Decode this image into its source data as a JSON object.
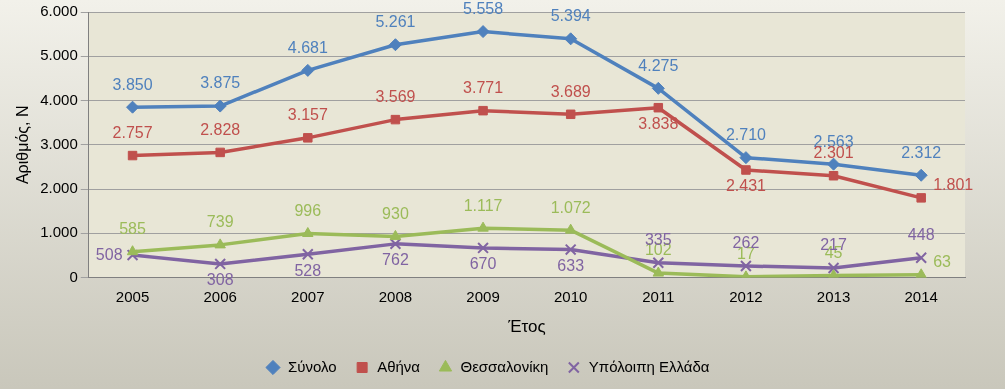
{
  "chart_data": {
    "type": "line",
    "xlabel": "Έτος",
    "ylabel": "Αριθμός, Ν",
    "categories": [
      "2005",
      "2006",
      "2007",
      "2008",
      "2009",
      "2010",
      "2011",
      "2012",
      "2013",
      "2014"
    ],
    "ylim": [
      0,
      6000
    ],
    "yticks": [
      {
        "value": 0,
        "label": "0"
      },
      {
        "value": 1000,
        "label": "1.000"
      },
      {
        "value": 2000,
        "label": "2.000"
      },
      {
        "value": 3000,
        "label": "3.000"
      },
      {
        "value": 4000,
        "label": "4.000"
      },
      {
        "value": 5000,
        "label": "5.000"
      },
      {
        "value": 6000,
        "label": "6.000"
      }
    ],
    "grid": "y",
    "legend": "bottom",
    "line_style": "solid",
    "series": [
      {
        "name": "Σύνολο",
        "color": "#4f81bd",
        "marker": "diamond",
        "values": [
          3850,
          3875,
          4681,
          5261,
          5558,
          5394,
          4275,
          2710,
          2563,
          2312
        ],
        "value_labels": [
          "3.850",
          "3.875",
          "4.681",
          "5.261",
          "5.558",
          "5.394",
          "4.275",
          "2.710",
          "2.563",
          "2.312"
        ]
      },
      {
        "name": "Αθήνα",
        "color": "#c0504d",
        "marker": "square",
        "values": [
          2757,
          2828,
          3157,
          3569,
          3771,
          3689,
          3838,
          2431,
          2301,
          1801
        ],
        "value_labels": [
          "2.757",
          "2.828",
          "3.157",
          "3.569",
          "3.771",
          "3.689",
          "3.838",
          "2.431",
          "2.301",
          "1.801"
        ]
      },
      {
        "name": "Θεσσαλονίκη",
        "color": "#9bbb59",
        "marker": "triangle",
        "values": [
          585,
          739,
          996,
          930,
          1117,
          1072,
          102,
          17,
          45,
          63
        ],
        "value_labels": [
          "585",
          "739",
          "996",
          "930",
          "1.117",
          "1.072",
          "102",
          "17",
          "45",
          "63"
        ]
      },
      {
        "name": "Υπόλοιπη Ελλάδα",
        "color": "#8064a2",
        "marker": "cross",
        "values": [
          508,
          308,
          528,
          762,
          670,
          633,
          335,
          262,
          217,
          448
        ],
        "value_labels": [
          "508",
          "308",
          "528",
          "762",
          "670",
          "633",
          "335",
          "262",
          "217",
          "448"
        ]
      }
    ]
  }
}
